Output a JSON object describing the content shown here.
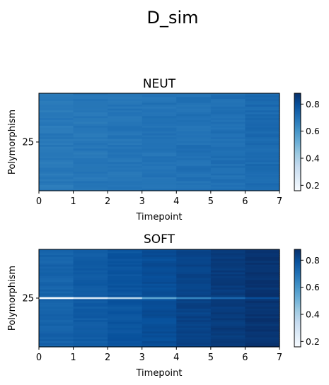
{
  "title": "D_sim",
  "chart_data": [
    {
      "type": "heatmap",
      "title": "NEUT",
      "xlabel": "Timepoint",
      "ylabel": "Polymorphism",
      "xlim": [
        0,
        7
      ],
      "xticks": [
        "0",
        "1",
        "2",
        "3",
        "4",
        "5",
        "6",
        "7"
      ],
      "yticks": [
        {
          "label": "25",
          "row": 25
        }
      ],
      "n_rows": 51,
      "highlight_row": 25,
      "color_scale": "Blues",
      "vmin": 0.16,
      "vmax": 0.88,
      "colorbar_ticks": [
        "0.2",
        "0.4",
        "0.6",
        "0.8"
      ],
      "base_values": [
        0.68,
        0.685,
        0.69,
        0.695,
        0.7,
        0.705,
        0.72
      ],
      "highlight_values": [
        0.68,
        0.685,
        0.69,
        0.695,
        0.7,
        0.705,
        0.72
      ]
    },
    {
      "type": "heatmap",
      "title": "SOFT",
      "xlabel": "Timepoint",
      "ylabel": "Polymorphism",
      "xlim": [
        0,
        7
      ],
      "xticks": [
        "0",
        "1",
        "2",
        "3",
        "4",
        "5",
        "6",
        "7"
      ],
      "yticks": [
        {
          "label": "25",
          "row": 25
        }
      ],
      "n_rows": 51,
      "highlight_row": 25,
      "color_scale": "Blues",
      "vmin": 0.16,
      "vmax": 0.88,
      "colorbar_ticks": [
        "0.2",
        "0.4",
        "0.6",
        "0.8"
      ],
      "base_values": [
        0.74,
        0.76,
        0.78,
        0.8,
        0.83,
        0.85,
        0.87
      ],
      "highlight_values": [
        0.17,
        0.28,
        0.38,
        0.55,
        0.65,
        0.73,
        0.8
      ]
    }
  ],
  "colors": {
    "blues_stops": [
      "#f7fbff",
      "#deebf7",
      "#c6dbef",
      "#9ecae1",
      "#6baed6",
      "#4292c6",
      "#2171b5",
      "#08519c",
      "#08306b"
    ]
  }
}
